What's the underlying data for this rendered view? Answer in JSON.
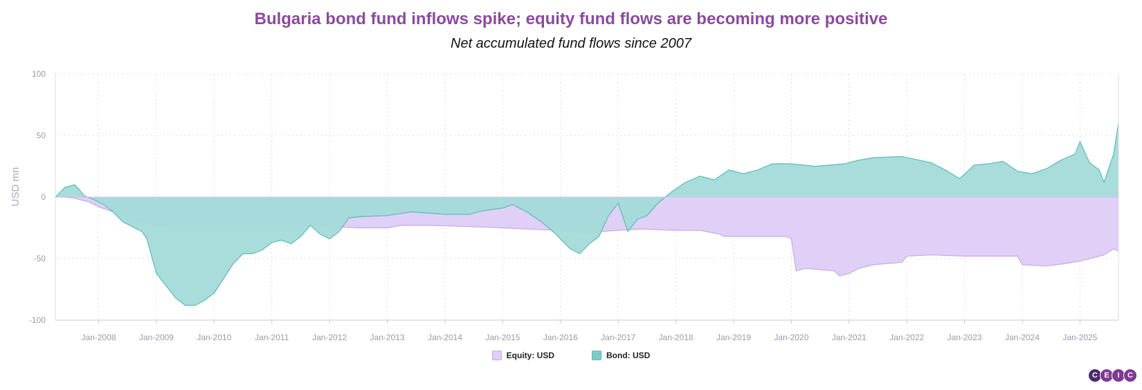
{
  "title": "Bulgaria bond fund inflows spike; equity fund flows are becoming more positive",
  "subtitle": "Net accumulated fund flows since 2007",
  "logo": {
    "letters": [
      "C",
      "E",
      "I",
      "C"
    ]
  },
  "colors": {
    "equity": "#e0d0f7",
    "bond": "#a3dbd9",
    "bond_stroke": "#5fb9b4",
    "equity_stroke": "#c6a8ea",
    "overlap": "#c8c4ee",
    "title": "#8a4a9e"
  },
  "chart_data": {
    "type": "area",
    "ylabel": "USD mn",
    "ylim": [
      -100,
      100
    ],
    "yticks": [
      100,
      50,
      0,
      -50,
      -100
    ],
    "xlim": [
      "2007-04",
      "2025-09"
    ],
    "xticks": [
      "Jan-2008",
      "Jan-2009",
      "Jan-2010",
      "Jan-2011",
      "Jan-2012",
      "Jan-2013",
      "Jan-2014",
      "Jan-2015",
      "Jan-2016",
      "Jan-2017",
      "Jan-2018",
      "Jan-2019",
      "Jan-2020",
      "Jan-2021",
      "Jan-2022",
      "Jan-2023",
      "Jan-2024",
      "Jan-2025"
    ],
    "grid": true,
    "legend_position": "bottom",
    "series": [
      {
        "name": "Equity: USD",
        "points": [
          [
            "2007-04",
            0
          ],
          [
            "2007-06",
            0
          ],
          [
            "2007-08",
            -1
          ],
          [
            "2007-11",
            -4
          ],
          [
            "2008-01",
            -8
          ],
          [
            "2008-04",
            -12
          ],
          [
            "2008-07",
            -16
          ],
          [
            "2008-10",
            -20
          ],
          [
            "2009-01",
            -23
          ],
          [
            "2009-04",
            -24
          ],
          [
            "2009-07",
            -24
          ],
          [
            "2010-01",
            -24
          ],
          [
            "2011-01",
            -24
          ],
          [
            "2011-06",
            -24
          ],
          [
            "2011-09",
            -23
          ],
          [
            "2011-10",
            -23
          ],
          [
            "2012-01",
            -24
          ],
          [
            "2012-07",
            -25
          ],
          [
            "2013-01",
            -25
          ],
          [
            "2013-04",
            -23
          ],
          [
            "2013-10",
            -23
          ],
          [
            "2014-06",
            -24
          ],
          [
            "2015-01",
            -25
          ],
          [
            "2015-06",
            -26
          ],
          [
            "2016-01",
            -27
          ],
          [
            "2016-06",
            -29
          ],
          [
            "2017-01",
            -27
          ],
          [
            "2017-06",
            -26
          ],
          [
            "2018-01",
            -27
          ],
          [
            "2018-06",
            -27
          ],
          [
            "2018-10",
            -30
          ],
          [
            "2018-11",
            -32
          ],
          [
            "2019-06",
            -32
          ],
          [
            "2019-12",
            -32
          ],
          [
            "2020-01",
            -34
          ],
          [
            "2020-02",
            -60
          ],
          [
            "2020-04",
            -58
          ],
          [
            "2020-10",
            -60
          ],
          [
            "2020-11",
            -64
          ],
          [
            "2021-01",
            -62
          ],
          [
            "2021-03",
            -58
          ],
          [
            "2021-06",
            -55
          ],
          [
            "2021-12",
            -53
          ],
          [
            "2022-01",
            -48
          ],
          [
            "2022-06",
            -47
          ],
          [
            "2023-01",
            -48
          ],
          [
            "2023-12",
            -48
          ],
          [
            "2024-01",
            -55
          ],
          [
            "2024-06",
            -56
          ],
          [
            "2024-10",
            -54
          ],
          [
            "2025-01",
            -52
          ],
          [
            "2025-03",
            -50
          ],
          [
            "2025-06",
            -47
          ],
          [
            "2025-08",
            -42
          ],
          [
            "2025-09",
            -44
          ]
        ]
      },
      {
        "name": "Bond: USD",
        "points": [
          [
            "2007-04",
            0
          ],
          [
            "2007-05",
            4
          ],
          [
            "2007-06",
            8
          ],
          [
            "2007-08",
            10
          ],
          [
            "2007-09",
            6
          ],
          [
            "2007-10",
            1
          ],
          [
            "2007-12",
            -2
          ],
          [
            "2008-02",
            -6
          ],
          [
            "2008-04",
            -12
          ],
          [
            "2008-06",
            -20
          ],
          [
            "2008-08",
            -24
          ],
          [
            "2008-10",
            -28
          ],
          [
            "2008-11",
            -34
          ],
          [
            "2008-12",
            -48
          ],
          [
            "2009-01",
            -62
          ],
          [
            "2009-03",
            -72
          ],
          [
            "2009-05",
            -82
          ],
          [
            "2009-07",
            -88
          ],
          [
            "2009-09",
            -88
          ],
          [
            "2009-11",
            -84
          ],
          [
            "2010-01",
            -78
          ],
          [
            "2010-03",
            -66
          ],
          [
            "2010-05",
            -54
          ],
          [
            "2010-07",
            -46
          ],
          [
            "2010-09",
            -46
          ],
          [
            "2010-11",
            -43
          ],
          [
            "2011-01",
            -37
          ],
          [
            "2011-03",
            -35
          ],
          [
            "2011-05",
            -38
          ],
          [
            "2011-07",
            -32
          ],
          [
            "2011-09",
            -23
          ],
          [
            "2011-11",
            -30
          ],
          [
            "2012-01",
            -34
          ],
          [
            "2012-03",
            -28
          ],
          [
            "2012-05",
            -17
          ],
          [
            "2012-07",
            -16
          ],
          [
            "2013-01",
            -15
          ],
          [
            "2013-06",
            -12
          ],
          [
            "2014-01",
            -14
          ],
          [
            "2014-06",
            -14
          ],
          [
            "2014-09",
            -11
          ],
          [
            "2015-01",
            -9
          ],
          [
            "2015-03",
            -6
          ],
          [
            "2015-06",
            -12
          ],
          [
            "2015-09",
            -20
          ],
          [
            "2015-12",
            -30
          ],
          [
            "2016-03",
            -42
          ],
          [
            "2016-05",
            -46
          ],
          [
            "2016-07",
            -38
          ],
          [
            "2016-09",
            -32
          ],
          [
            "2016-11",
            -15
          ],
          [
            "2017-01",
            -5
          ],
          [
            "2017-03",
            -28
          ],
          [
            "2017-05",
            -18
          ],
          [
            "2017-07",
            -15
          ],
          [
            "2017-09",
            -6
          ],
          [
            "2017-12",
            4
          ],
          [
            "2018-03",
            12
          ],
          [
            "2018-06",
            17
          ],
          [
            "2018-09",
            14
          ],
          [
            "2018-12",
            22
          ],
          [
            "2019-03",
            19
          ],
          [
            "2019-06",
            22
          ],
          [
            "2019-09",
            27
          ],
          [
            "2020-01",
            27
          ],
          [
            "2020-06",
            25
          ],
          [
            "2020-12",
            27
          ],
          [
            "2021-03",
            30
          ],
          [
            "2021-06",
            32
          ],
          [
            "2021-12",
            33
          ],
          [
            "2022-06",
            28
          ],
          [
            "2022-09",
            22
          ],
          [
            "2022-12",
            15
          ],
          [
            "2023-03",
            26
          ],
          [
            "2023-06",
            27
          ],
          [
            "2023-09",
            29
          ],
          [
            "2023-12",
            21
          ],
          [
            "2024-03",
            19
          ],
          [
            "2024-06",
            23
          ],
          [
            "2024-09",
            30
          ],
          [
            "2024-12",
            35
          ],
          [
            "2025-01",
            45
          ],
          [
            "2025-03",
            28
          ],
          [
            "2025-05",
            22
          ],
          [
            "2025-06",
            12
          ],
          [
            "2025-08",
            35
          ],
          [
            "2025-09",
            60
          ]
        ]
      }
    ]
  }
}
